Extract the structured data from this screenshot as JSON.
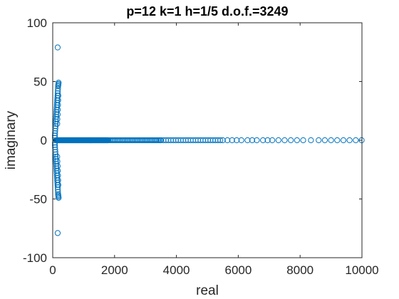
{
  "chart_data": {
    "type": "scatter",
    "title": "p=12 k=1 h=1/5 d.o.f.=3249",
    "xlabel": "real",
    "ylabel": "imaginary",
    "xlim": [
      0,
      10000
    ],
    "ylim": [
      -100,
      100
    ],
    "x_ticks": [
      0,
      2000,
      4000,
      6000,
      8000,
      10000
    ],
    "x_tick_labels": [
      "0",
      "2000",
      "4000",
      "6000",
      "8000",
      "10000"
    ],
    "y_ticks": [
      -100,
      -50,
      0,
      50,
      100
    ],
    "y_tick_labels": [
      "-100",
      "-50",
      "0",
      "50",
      "100"
    ],
    "grid": false,
    "marker": "circle-open",
    "color": "#0072BD",
    "series": [
      {
        "points": [
          [
            160,
            79
          ],
          [
            160,
            -79
          ],
          [
            190,
            49
          ],
          [
            185,
            48
          ],
          [
            180,
            47
          ],
          [
            175,
            46
          ],
          [
            170,
            44
          ],
          [
            165,
            42
          ],
          [
            160,
            40
          ],
          [
            155,
            38
          ],
          [
            150,
            36
          ],
          [
            145,
            34
          ],
          [
            140,
            32
          ],
          [
            135,
            30
          ],
          [
            130,
            28
          ],
          [
            125,
            26
          ],
          [
            120,
            24
          ],
          [
            115,
            22
          ],
          [
            110,
            20
          ],
          [
            105,
            18
          ],
          [
            100,
            16
          ],
          [
            95,
            14
          ],
          [
            90,
            12
          ],
          [
            85,
            10
          ],
          [
            80,
            8
          ],
          [
            75,
            6
          ],
          [
            70,
            4
          ],
          [
            70,
            2
          ],
          [
            190,
            -49
          ],
          [
            185,
            -48
          ],
          [
            180,
            -47
          ],
          [
            175,
            -46
          ],
          [
            170,
            -44
          ],
          [
            165,
            -42
          ],
          [
            160,
            -40
          ],
          [
            155,
            -38
          ],
          [
            150,
            -36
          ],
          [
            145,
            -34
          ],
          [
            140,
            -32
          ],
          [
            135,
            -30
          ],
          [
            130,
            -28
          ],
          [
            125,
            -26
          ],
          [
            120,
            -24
          ],
          [
            115,
            -22
          ],
          [
            110,
            -20
          ],
          [
            105,
            -18
          ],
          [
            100,
            -16
          ],
          [
            95,
            -14
          ],
          [
            90,
            -12
          ],
          [
            85,
            -10
          ],
          [
            80,
            -8
          ],
          [
            75,
            -6
          ],
          [
            70,
            -4
          ],
          [
            70,
            -2
          ],
          [
            180,
            38
          ],
          [
            175,
            34
          ],
          [
            170,
            30
          ],
          [
            165,
            26
          ],
          [
            160,
            22
          ],
          [
            150,
            18
          ],
          [
            145,
            14
          ],
          [
            180,
            -38
          ],
          [
            175,
            -34
          ],
          [
            170,
            -30
          ],
          [
            165,
            -26
          ],
          [
            160,
            -22
          ],
          [
            150,
            -18
          ],
          [
            145,
            -14
          ],
          [
            5500,
            0
          ],
          [
            5650,
            0
          ],
          [
            5800,
            0
          ],
          [
            5950,
            0
          ],
          [
            6100,
            0
          ],
          [
            6300,
            0
          ],
          [
            6450,
            0
          ],
          [
            6600,
            0
          ],
          [
            6800,
            0
          ],
          [
            6950,
            0
          ],
          [
            7100,
            0
          ],
          [
            7300,
            0
          ],
          [
            7500,
            0
          ],
          [
            7700,
            0
          ],
          [
            7900,
            0
          ],
          [
            8100,
            0
          ],
          [
            8350,
            0
          ],
          [
            8600,
            0
          ],
          [
            8800,
            0
          ],
          [
            9000,
            0
          ],
          [
            9200,
            0
          ],
          [
            9400,
            0
          ],
          [
            9600,
            0
          ],
          [
            9800,
            0
          ],
          [
            9990,
            0
          ]
        ],
        "dense_ranges_on_real_axis": [
          {
            "from": 100,
            "to": 1800,
            "step": 10,
            "y": 0
          },
          {
            "from": 1800,
            "to": 3500,
            "step": 40,
            "y": 0
          },
          {
            "from": 3500,
            "to": 5500,
            "step": 80,
            "y": 0
          }
        ]
      }
    ]
  }
}
